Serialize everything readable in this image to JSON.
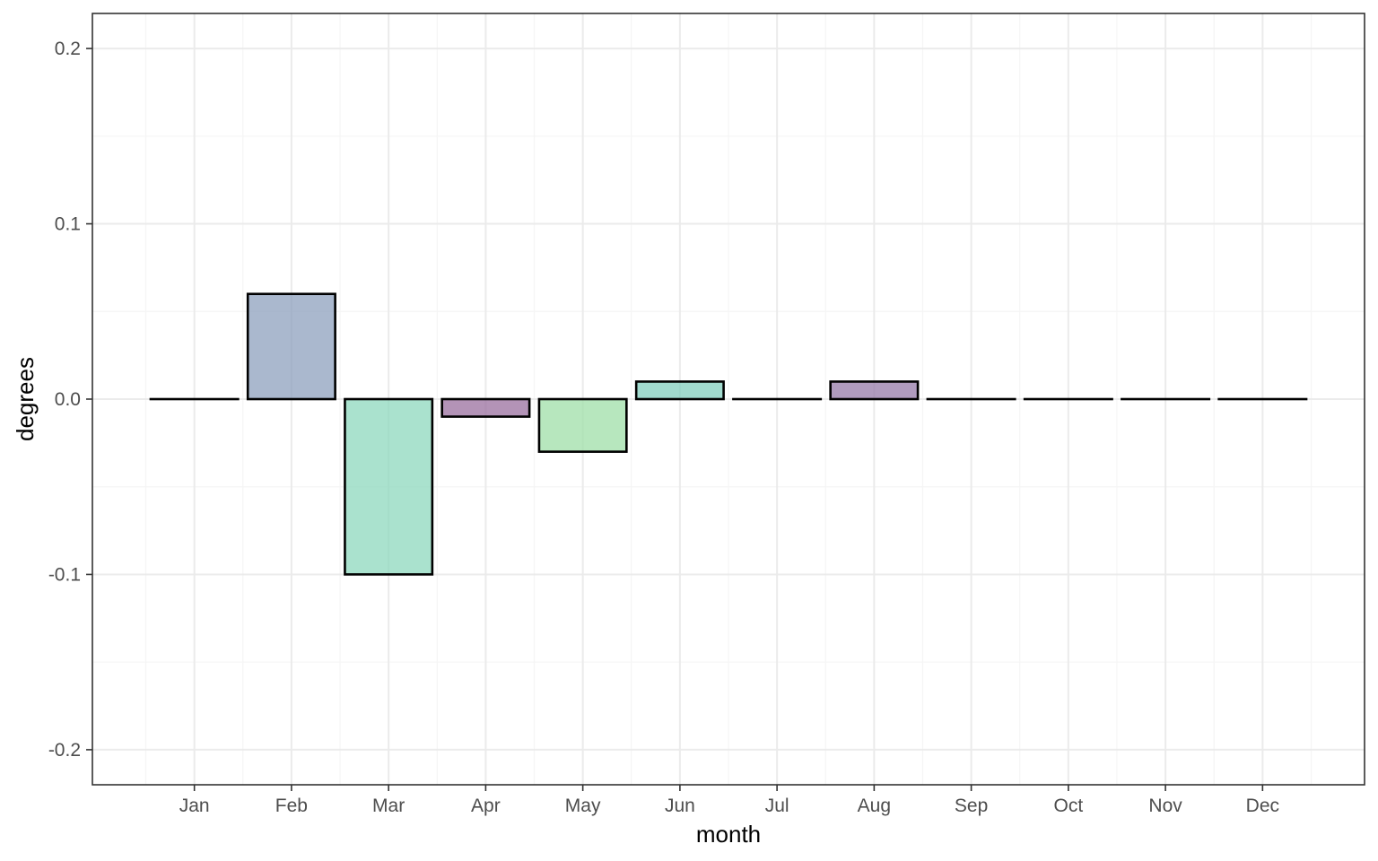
{
  "chart_data": {
    "type": "bar",
    "title": "",
    "xlabel": "month",
    "ylabel": "degrees",
    "categories": [
      "Jan",
      "Feb",
      "Mar",
      "Apr",
      "May",
      "Jun",
      "Jul",
      "Aug",
      "Sep",
      "Oct",
      "Nov",
      "Dec"
    ],
    "values": [
      0,
      0.06,
      -0.1,
      -0.01,
      -0.03,
      0.01,
      0,
      0.01,
      0,
      0,
      0,
      0
    ],
    "bar_colors": [
      "#8ea0bd",
      "#8ea0bd",
      "#8dd8bd",
      "#9a6f9f",
      "#9fdfa8",
      "#82cdbd",
      "#8ea0bd",
      "#957aa8",
      "#8ea0bd",
      "#8ea0bd",
      "#8ea0bd",
      "#8ea0bd"
    ],
    "bar_opacity": 0.75,
    "ylim": [
      -0.22,
      0.22
    ],
    "yticks": [
      -0.2,
      -0.1,
      0.0,
      0.1,
      0.2
    ],
    "ytick_labels": [
      "-0.2",
      "-0.1",
      "0.0",
      "0.1",
      "0.2"
    ],
    "grid": true,
    "legend": "none",
    "colors": {
      "panel_border": "#333333",
      "grid_major": "#ebebeb",
      "grid_minor": "#f5f5f5",
      "bar_outline": "#000000",
      "tick_text": "#4d4d4d"
    }
  }
}
